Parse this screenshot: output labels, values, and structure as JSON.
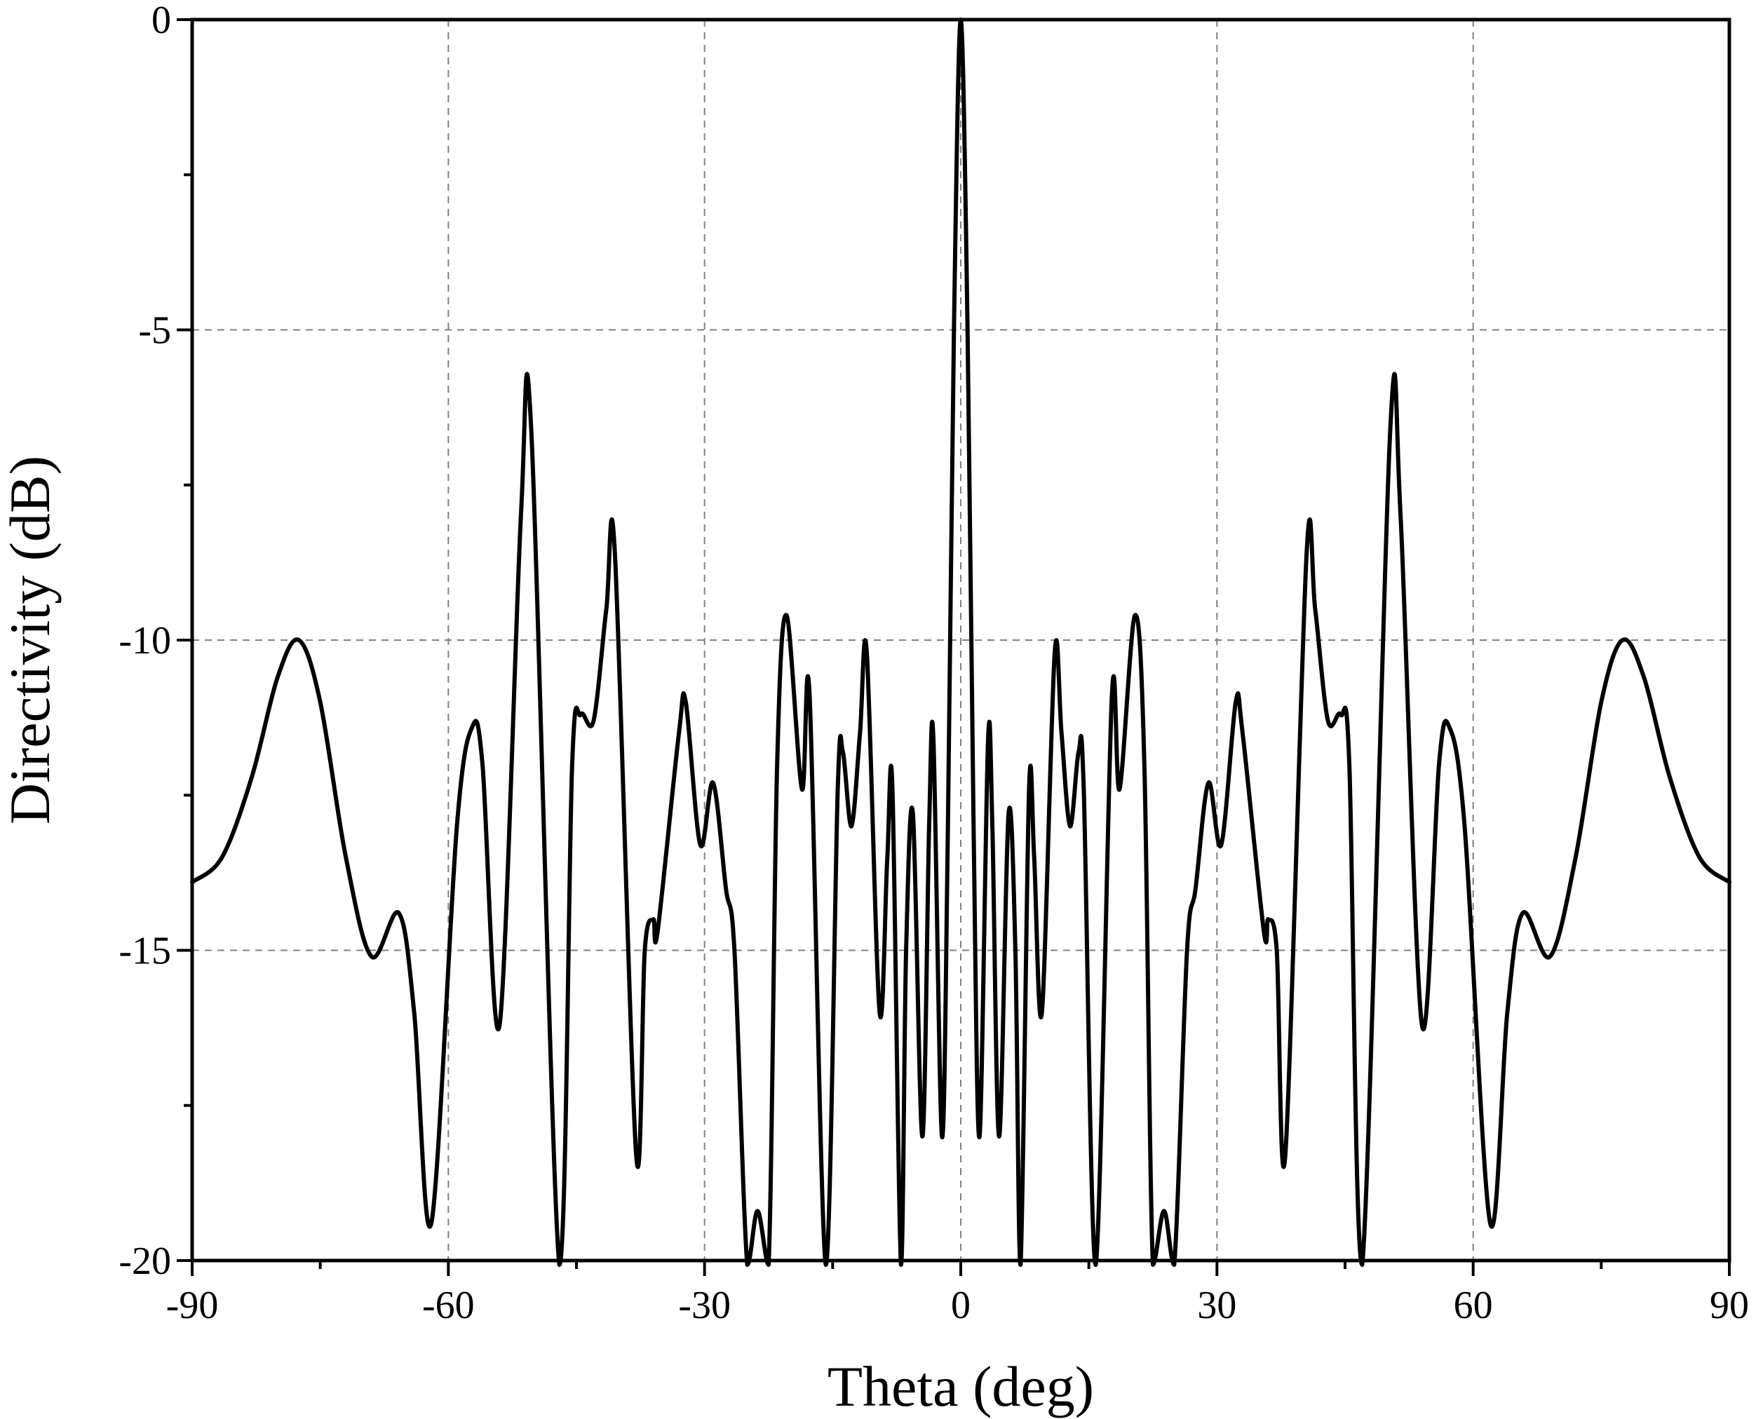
{
  "chart_data": {
    "type": "line",
    "title": "",
    "xlabel": "Theta (deg)",
    "ylabel": "Directivity (dB)",
    "xlim": [
      -90,
      90
    ],
    "ylim": [
      -20,
      0
    ],
    "x_ticks": [
      -90,
      -60,
      -30,
      0,
      30,
      60,
      90
    ],
    "x_tick_labels": [
      "-90",
      "-60",
      "-30",
      "0",
      "30",
      "60",
      "90"
    ],
    "y_ticks": [
      -20,
      -15,
      -10,
      -5,
      0
    ],
    "y_tick_labels": [
      "-20",
      "-15",
      "-10",
      "-5",
      "0"
    ],
    "x_minor_step": 15,
    "y_minor_step": 2.5,
    "grid": true,
    "legend": "none",
    "series": [
      {
        "color": "#000000",
        "symmetric_about_zero": true,
        "points_right_half": [
          [
            0,
            0
          ],
          [
            0.8,
            -5
          ],
          [
            1.5,
            -13
          ],
          [
            2.2,
            -18
          ],
          [
            3.2,
            -11.6
          ],
          [
            3.7,
            -13
          ],
          [
            4.5,
            -18
          ],
          [
            5.6,
            -12.8
          ],
          [
            6.4,
            -15
          ],
          [
            7.0,
            -20.2
          ],
          [
            8.0,
            -12.4
          ],
          [
            8.6,
            -13.5
          ],
          [
            9.5,
            -16
          ],
          [
            11.0,
            -10.2
          ],
          [
            11.8,
            -11.5
          ],
          [
            12.8,
            -13
          ],
          [
            13.8,
            -11.8
          ],
          [
            14.4,
            -12.4
          ],
          [
            15.8,
            -20.2
          ],
          [
            17.7,
            -10.9
          ],
          [
            18.6,
            -12.4
          ],
          [
            20.4,
            -9.6
          ],
          [
            21.5,
            -12
          ],
          [
            22.5,
            -20.2
          ],
          [
            23.8,
            -19.2
          ],
          [
            25.0,
            -20.2
          ],
          [
            26.5,
            -15
          ],
          [
            27.5,
            -14
          ],
          [
            29.0,
            -12.3
          ],
          [
            30.5,
            -13.3
          ],
          [
            32.2,
            -11
          ],
          [
            33.0,
            -11.5
          ],
          [
            35.5,
            -14.7
          ],
          [
            36.0,
            -14.5
          ],
          [
            37.0,
            -15
          ],
          [
            38.0,
            -18.3
          ],
          [
            40.5,
            -8.6
          ],
          [
            41.5,
            -9.5
          ],
          [
            43.0,
            -11.3
          ],
          [
            44.5,
            -11.2
          ],
          [
            45.5,
            -12
          ],
          [
            47.0,
            -20.2
          ],
          [
            50.3,
            -6.6
          ],
          [
            51.5,
            -8
          ],
          [
            54.0,
            -16.2
          ],
          [
            56.0,
            -12
          ],
          [
            57.2,
            -11.4
          ],
          [
            59.0,
            -13
          ],
          [
            62.0,
            -19.4
          ],
          [
            64.0,
            -16
          ],
          [
            65.8,
            -14.4
          ],
          [
            69.0,
            -15.1
          ],
          [
            72.0,
            -13.5
          ],
          [
            75.0,
            -11
          ],
          [
            77.5,
            -10
          ],
          [
            80.0,
            -10.6
          ],
          [
            83.0,
            -12.2
          ],
          [
            86.5,
            -13.5
          ],
          [
            90.0,
            -13.9
          ]
        ]
      }
    ]
  }
}
